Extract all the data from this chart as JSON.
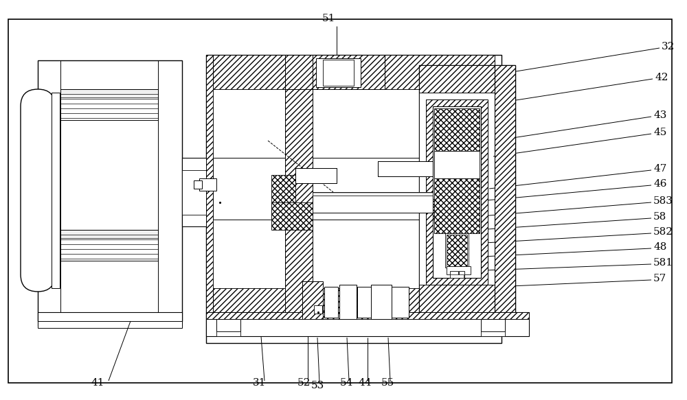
{
  "bg_color": "#ffffff",
  "lc": "#000000",
  "fig_width": 10.0,
  "fig_height": 5.83,
  "dpi": 100
}
